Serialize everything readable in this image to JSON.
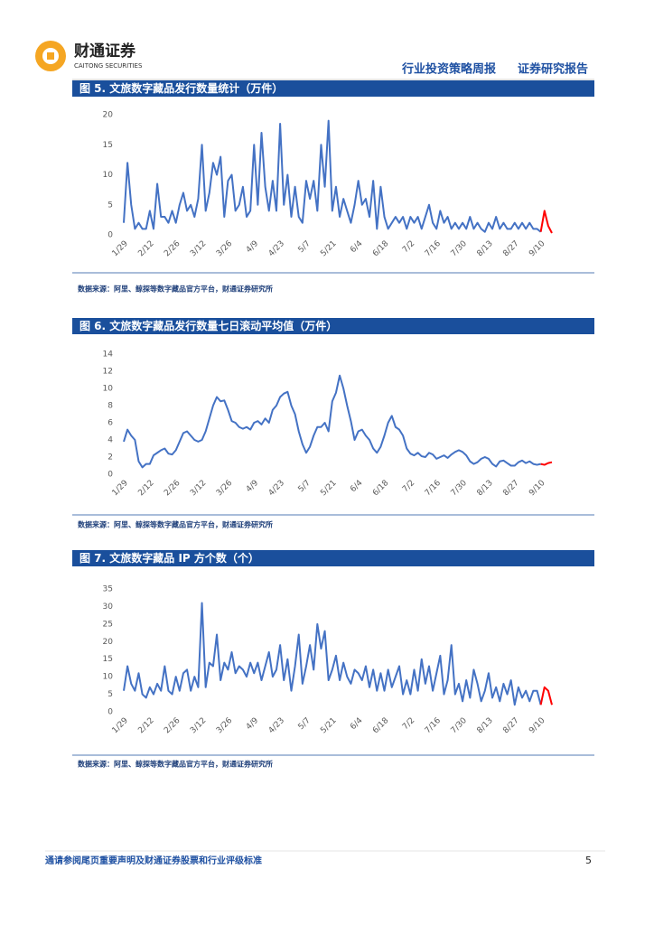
{
  "header": {
    "logo_name": "财通证券",
    "logo_subname": "CAITONG SECURITIES",
    "report_type": "行业投资策略周报",
    "report_category": "证券研究报告"
  },
  "chart_data": [
    {
      "type": "line",
      "title": "图 5. 文旅数字藏品发行数量统计（万件）",
      "source": "数据来源：阿里、鲸探等数字藏品官方平台，财通证券研究所",
      "categories": [
        "1/29",
        null,
        null,
        null,
        null,
        null,
        null,
        "2/12",
        null,
        null,
        null,
        null,
        null,
        null,
        "2/26",
        null,
        null,
        null,
        null,
        null,
        null,
        "3/12",
        null,
        null,
        null,
        null,
        null,
        null,
        "3/26",
        null,
        null,
        null,
        null,
        null,
        null,
        "4/9",
        null,
        null,
        null,
        null,
        null,
        null,
        "4/23",
        null,
        null,
        null,
        null,
        null,
        null,
        "5/7",
        null,
        null,
        null,
        null,
        null,
        null,
        "5/21",
        null,
        null,
        null,
        null,
        null,
        null,
        "6/4",
        null,
        null,
        null,
        null,
        null,
        null,
        "6/18",
        null,
        null,
        null,
        null,
        null,
        null,
        "7/2",
        null,
        null,
        null,
        null,
        null,
        null,
        "7/16",
        null,
        null,
        null,
        null,
        null,
        null,
        "7/30",
        null,
        null,
        null,
        null,
        null,
        null,
        "8/13",
        null,
        null,
        null,
        null,
        null,
        null,
        "8/27",
        null,
        null,
        null,
        null,
        null,
        null,
        "9/10",
        null,
        null,
        null
      ],
      "ylim": [
        0,
        20
      ],
      "yticks": [
        0,
        5,
        10,
        15,
        20
      ],
      "series": [
        {
          "color": "#4472c4",
          "values": [
            2,
            12,
            5,
            1,
            2,
            1,
            1,
            4,
            1,
            8.5,
            3,
            3,
            2,
            4,
            2,
            5,
            7,
            4,
            5,
            3,
            6,
            15,
            4,
            7,
            12,
            10,
            13,
            3,
            9,
            10,
            4,
            5,
            8,
            3,
            4,
            15,
            5,
            17,
            8,
            4,
            9,
            4,
            18.5,
            5,
            10,
            3,
            8,
            3,
            2,
            9,
            6,
            9,
            4,
            15,
            8,
            19,
            4,
            8,
            3,
            6,
            4,
            2,
            5,
            9,
            5,
            6,
            3,
            9,
            1,
            8,
            3,
            1,
            2,
            3,
            2,
            3,
            1,
            3,
            2,
            3,
            1,
            3,
            5,
            2,
            1,
            4,
            2,
            3,
            1,
            2,
            1,
            2,
            1,
            3,
            1,
            2,
            1,
            0.5,
            2,
            1,
            3,
            1,
            2,
            1,
            1,
            2,
            1,
            2,
            1,
            2,
            1,
            1,
            0.5,
            null,
            null,
            null
          ]
        },
        {
          "color": "#ff0000",
          "values": [
            null,
            null,
            null,
            null,
            null,
            null,
            null,
            null,
            null,
            null,
            null,
            null,
            null,
            null,
            null,
            null,
            null,
            null,
            null,
            null,
            null,
            null,
            null,
            null,
            null,
            null,
            null,
            null,
            null,
            null,
            null,
            null,
            null,
            null,
            null,
            null,
            null,
            null,
            null,
            null,
            null,
            null,
            null,
            null,
            null,
            null,
            null,
            null,
            null,
            null,
            null,
            null,
            null,
            null,
            null,
            null,
            null,
            null,
            null,
            null,
            null,
            null,
            null,
            null,
            null,
            null,
            null,
            null,
            null,
            null,
            null,
            null,
            null,
            null,
            null,
            null,
            null,
            null,
            null,
            null,
            null,
            null,
            null,
            null,
            null,
            null,
            null,
            null,
            null,
            null,
            null,
            null,
            null,
            null,
            null,
            null,
            null,
            null,
            null,
            null,
            null,
            null,
            null,
            null,
            null,
            null,
            null,
            null,
            null,
            null,
            null,
            null,
            0.5,
            4,
            1.5,
            0.3
          ]
        }
      ]
    },
    {
      "type": "line",
      "title": "图 6. 文旅数字藏品发行数量七日滚动平均值（万件）",
      "source": "数据来源：阿里、鲸探等数字藏品官方平台，财通证券研究所",
      "categories": [
        "1/29",
        null,
        null,
        null,
        null,
        null,
        null,
        "2/12",
        null,
        null,
        null,
        null,
        null,
        null,
        "2/26",
        null,
        null,
        null,
        null,
        null,
        null,
        "3/12",
        null,
        null,
        null,
        null,
        null,
        null,
        "3/26",
        null,
        null,
        null,
        null,
        null,
        null,
        "4/9",
        null,
        null,
        null,
        null,
        null,
        null,
        "4/23",
        null,
        null,
        null,
        null,
        null,
        null,
        "5/7",
        null,
        null,
        null,
        null,
        null,
        null,
        "5/21",
        null,
        null,
        null,
        null,
        null,
        null,
        "6/4",
        null,
        null,
        null,
        null,
        null,
        null,
        "6/18",
        null,
        null,
        null,
        null,
        null,
        null,
        "7/2",
        null,
        null,
        null,
        null,
        null,
        null,
        "7/16",
        null,
        null,
        null,
        null,
        null,
        null,
        "7/30",
        null,
        null,
        null,
        null,
        null,
        null,
        "8/13",
        null,
        null,
        null,
        null,
        null,
        null,
        "8/27",
        null,
        null,
        null,
        null,
        null,
        null,
        "9/10",
        null,
        null,
        null
      ],
      "ylim": [
        0,
        14
      ],
      "yticks": [
        0,
        2,
        4,
        6,
        8,
        10,
        12,
        14
      ],
      "series": [
        {
          "color": "#4472c4",
          "values": [
            3.8,
            5.2,
            4.5,
            4,
            1.5,
            0.8,
            1.2,
            1.2,
            2.2,
            2.5,
            2.8,
            3,
            2.4,
            2.3,
            2.8,
            3.8,
            4.8,
            5,
            4.5,
            4,
            3.8,
            4,
            5,
            6.5,
            8,
            9,
            8.5,
            8.6,
            7.5,
            6.2,
            6,
            5.5,
            5.3,
            5.5,
            5.2,
            6,
            6.2,
            5.8,
            6.5,
            6,
            7.5,
            8,
            9,
            9.4,
            9.6,
            8,
            7,
            5,
            3.5,
            2.5,
            3.2,
            4.5,
            5.5,
            5.5,
            6,
            5,
            8.5,
            9.5,
            11.5,
            10,
            8,
            6.2,
            4,
            5,
            5.2,
            4.5,
            4,
            3,
            2.5,
            3.2,
            4.5,
            6,
            6.8,
            5.5,
            5.2,
            4.5,
            3,
            2.4,
            2.2,
            2.5,
            2.1,
            2,
            2.5,
            2.3,
            1.8,
            2,
            2.2,
            1.9,
            2.3,
            2.6,
            2.8,
            2.6,
            2.2,
            1.5,
            1.2,
            1.4,
            1.8,
            2,
            1.8,
            1.2,
            0.9,
            1.5,
            1.6,
            1.3,
            1,
            1,
            1.4,
            1.6,
            1.3,
            1.5,
            1.2,
            1.1,
            1.2,
            null,
            null,
            null
          ]
        },
        {
          "color": "#ff0000",
          "values": [
            null,
            null,
            null,
            null,
            null,
            null,
            null,
            null,
            null,
            null,
            null,
            null,
            null,
            null,
            null,
            null,
            null,
            null,
            null,
            null,
            null,
            null,
            null,
            null,
            null,
            null,
            null,
            null,
            null,
            null,
            null,
            null,
            null,
            null,
            null,
            null,
            null,
            null,
            null,
            null,
            null,
            null,
            null,
            null,
            null,
            null,
            null,
            null,
            null,
            null,
            null,
            null,
            null,
            null,
            null,
            null,
            null,
            null,
            null,
            null,
            null,
            null,
            null,
            null,
            null,
            null,
            null,
            null,
            null,
            null,
            null,
            null,
            null,
            null,
            null,
            null,
            null,
            null,
            null,
            null,
            null,
            null,
            null,
            null,
            null,
            null,
            null,
            null,
            null,
            null,
            null,
            null,
            null,
            null,
            null,
            null,
            null,
            null,
            null,
            null,
            null,
            null,
            null,
            null,
            null,
            null,
            null,
            null,
            null,
            null,
            null,
            null,
            1.2,
            1.1,
            1.3,
            1.4
          ]
        }
      ]
    },
    {
      "type": "line",
      "title": "图 7. 文旅数字藏品 IP 方个数（个）",
      "source": "数据来源：阿里、鲸探等数字藏品官方平台，财通证券研究所",
      "categories": [
        "1/29",
        null,
        null,
        null,
        null,
        null,
        null,
        "2/12",
        null,
        null,
        null,
        null,
        null,
        null,
        "2/26",
        null,
        null,
        null,
        null,
        null,
        null,
        "3/12",
        null,
        null,
        null,
        null,
        null,
        null,
        "3/26",
        null,
        null,
        null,
        null,
        null,
        null,
        "4/9",
        null,
        null,
        null,
        null,
        null,
        null,
        "4/23",
        null,
        null,
        null,
        null,
        null,
        null,
        "5/7",
        null,
        null,
        null,
        null,
        null,
        null,
        "5/21",
        null,
        null,
        null,
        null,
        null,
        null,
        "6/4",
        null,
        null,
        null,
        null,
        null,
        null,
        "6/18",
        null,
        null,
        null,
        null,
        null,
        null,
        "7/2",
        null,
        null,
        null,
        null,
        null,
        null,
        "7/16",
        null,
        null,
        null,
        null,
        null,
        null,
        "7/30",
        null,
        null,
        null,
        null,
        null,
        null,
        "8/13",
        null,
        null,
        null,
        null,
        null,
        null,
        "8/27",
        null,
        null,
        null,
        null,
        null,
        null,
        "9/10",
        null,
        null,
        null
      ],
      "ylim": [
        0,
        35
      ],
      "yticks": [
        0,
        5,
        10,
        15,
        20,
        25,
        30,
        35
      ],
      "series": [
        {
          "color": "#4472c4",
          "values": [
            6,
            13,
            8,
            6,
            11,
            5,
            4,
            7,
            5,
            8,
            6,
            13,
            6,
            5,
            10,
            6,
            11,
            12,
            6,
            10,
            7,
            31,
            7,
            14,
            13,
            22,
            9,
            14,
            12,
            17,
            11,
            13,
            12,
            10,
            14,
            11,
            14,
            9,
            13,
            17,
            10,
            12,
            19,
            9,
            15,
            6,
            13,
            22,
            8,
            13,
            19,
            12,
            25,
            18,
            23,
            9,
            12,
            16,
            9,
            14,
            10,
            8,
            12,
            11,
            9,
            13,
            7,
            12,
            6,
            11,
            6,
            12,
            7,
            10,
            13,
            5,
            9,
            5,
            12,
            6,
            15,
            8,
            13,
            6,
            11,
            16,
            5,
            9,
            19,
            5,
            8,
            3,
            9,
            4,
            12,
            8,
            3,
            6,
            11,
            4,
            7,
            3,
            8,
            5,
            9,
            2,
            7,
            4,
            6,
            3,
            6,
            6,
            2,
            null,
            null,
            null
          ]
        },
        {
          "color": "#ff0000",
          "values": [
            null,
            null,
            null,
            null,
            null,
            null,
            null,
            null,
            null,
            null,
            null,
            null,
            null,
            null,
            null,
            null,
            null,
            null,
            null,
            null,
            null,
            null,
            null,
            null,
            null,
            null,
            null,
            null,
            null,
            null,
            null,
            null,
            null,
            null,
            null,
            null,
            null,
            null,
            null,
            null,
            null,
            null,
            null,
            null,
            null,
            null,
            null,
            null,
            null,
            null,
            null,
            null,
            null,
            null,
            null,
            null,
            null,
            null,
            null,
            null,
            null,
            null,
            null,
            null,
            null,
            null,
            null,
            null,
            null,
            null,
            null,
            null,
            null,
            null,
            null,
            null,
            null,
            null,
            null,
            null,
            null,
            null,
            null,
            null,
            null,
            null,
            null,
            null,
            null,
            null,
            null,
            null,
            null,
            null,
            null,
            null,
            null,
            null,
            null,
            null,
            null,
            null,
            null,
            null,
            null,
            null,
            null,
            null,
            null,
            null,
            null,
            null,
            2,
            7,
            6,
            2
          ]
        }
      ]
    }
  ],
  "footer": {
    "disclaimer": "通请参阅尾页重要声明及财通证券股票和行业评级标准",
    "page": 5
  }
}
